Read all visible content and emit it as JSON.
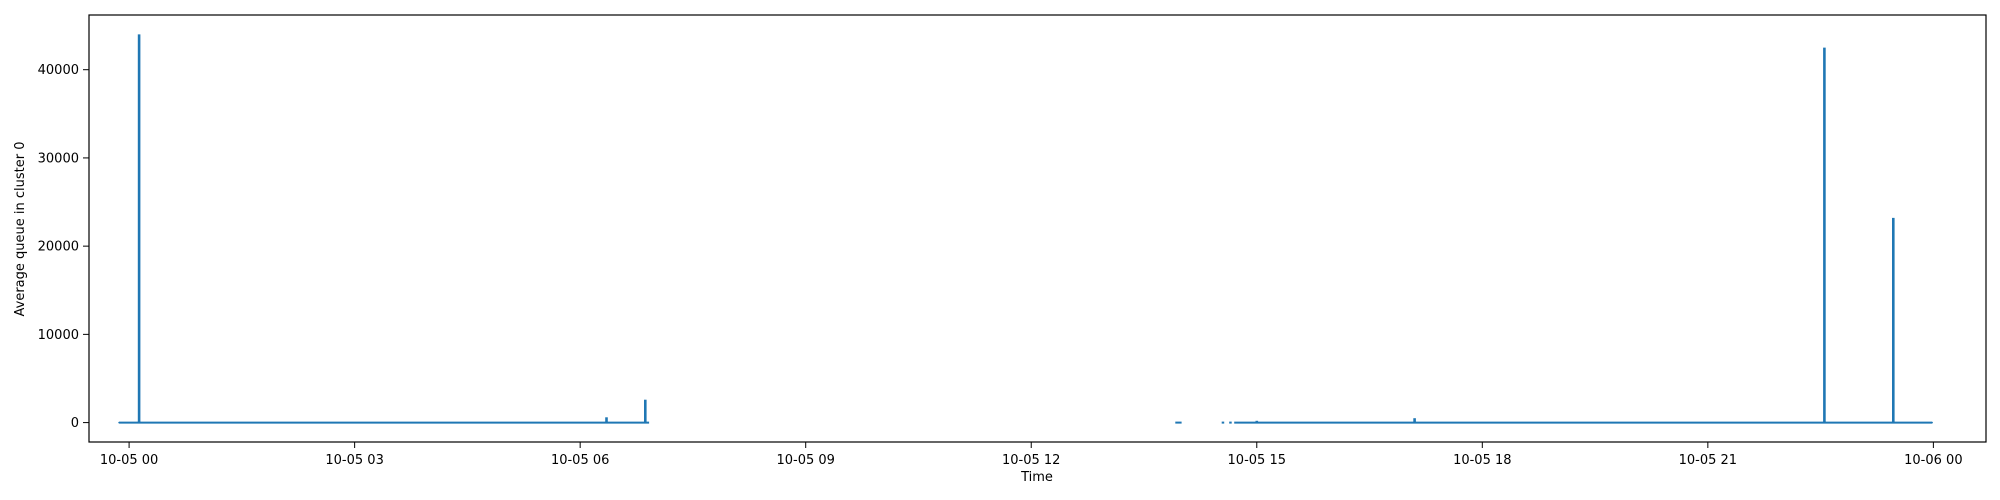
{
  "chart_data": {
    "type": "line",
    "title": "",
    "xlabel": "Time",
    "ylabel": "Average queue in cluster 0",
    "color": "#1f77b4",
    "xlim": [
      "10-04 23:28",
      "10-06 00:42"
    ],
    "ylim": [
      -2200,
      46200
    ],
    "grid": false,
    "legend": "none",
    "x_ticks": [
      {
        "label": "10-05 00",
        "value": "10-05 00:00"
      },
      {
        "label": "10-05 03",
        "value": "10-05 03:00"
      },
      {
        "label": "10-05 06",
        "value": "10-05 06:00"
      },
      {
        "label": "10-05 09",
        "value": "10-05 09:00"
      },
      {
        "label": "10-05 12",
        "value": "10-05 12:00"
      },
      {
        "label": "10-05 15",
        "value": "10-05 15:00"
      },
      {
        "label": "10-05 18",
        "value": "10-05 18:00"
      },
      {
        "label": "10-05 21",
        "value": "10-05 21:00"
      },
      {
        "label": "10-06 00",
        "value": "10-06 00:00"
      }
    ],
    "y_ticks": [
      0,
      10000,
      20000,
      30000,
      40000
    ],
    "baseline_segments": [
      [
        "10-04 23:52",
        "10-05 06:55"
      ],
      [
        "10-05 13:55",
        "10-05 14:00"
      ],
      [
        "10-05 14:32",
        "10-05 14:34"
      ],
      [
        "10-05 14:38",
        "10-05 14:40"
      ],
      [
        "10-05 14:42",
        "10-05 23:59"
      ]
    ],
    "points": [
      {
        "x": "10-04 23:52",
        "y": 0
      },
      {
        "x": "10-05 00:07",
        "y": 0
      },
      {
        "x": "10-05 00:08",
        "y": 44000
      },
      {
        "x": "10-05 00:09",
        "y": 0
      },
      {
        "x": "10-05 06:20",
        "y": 0
      },
      {
        "x": "10-05 06:21",
        "y": 600
      },
      {
        "x": "10-05 06:22",
        "y": 0
      },
      {
        "x": "10-05 06:52",
        "y": 2600
      },
      {
        "x": "10-05 15:00",
        "y": 200
      },
      {
        "x": "10-05 17:05",
        "y": 0
      },
      {
        "x": "10-05 17:06",
        "y": 500
      },
      {
        "x": "10-05 17:07",
        "y": 0
      },
      {
        "x": "10-05 22:32",
        "y": 0
      },
      {
        "x": "10-05 22:33",
        "y": 42500
      },
      {
        "x": "10-05 22:34",
        "y": 0
      },
      {
        "x": "10-05 23:27",
        "y": 0
      },
      {
        "x": "10-05 23:28",
        "y": 23200
      },
      {
        "x": "10-05 23:29",
        "y": 0
      },
      {
        "x": "10-05 23:59",
        "y": 0
      }
    ]
  }
}
